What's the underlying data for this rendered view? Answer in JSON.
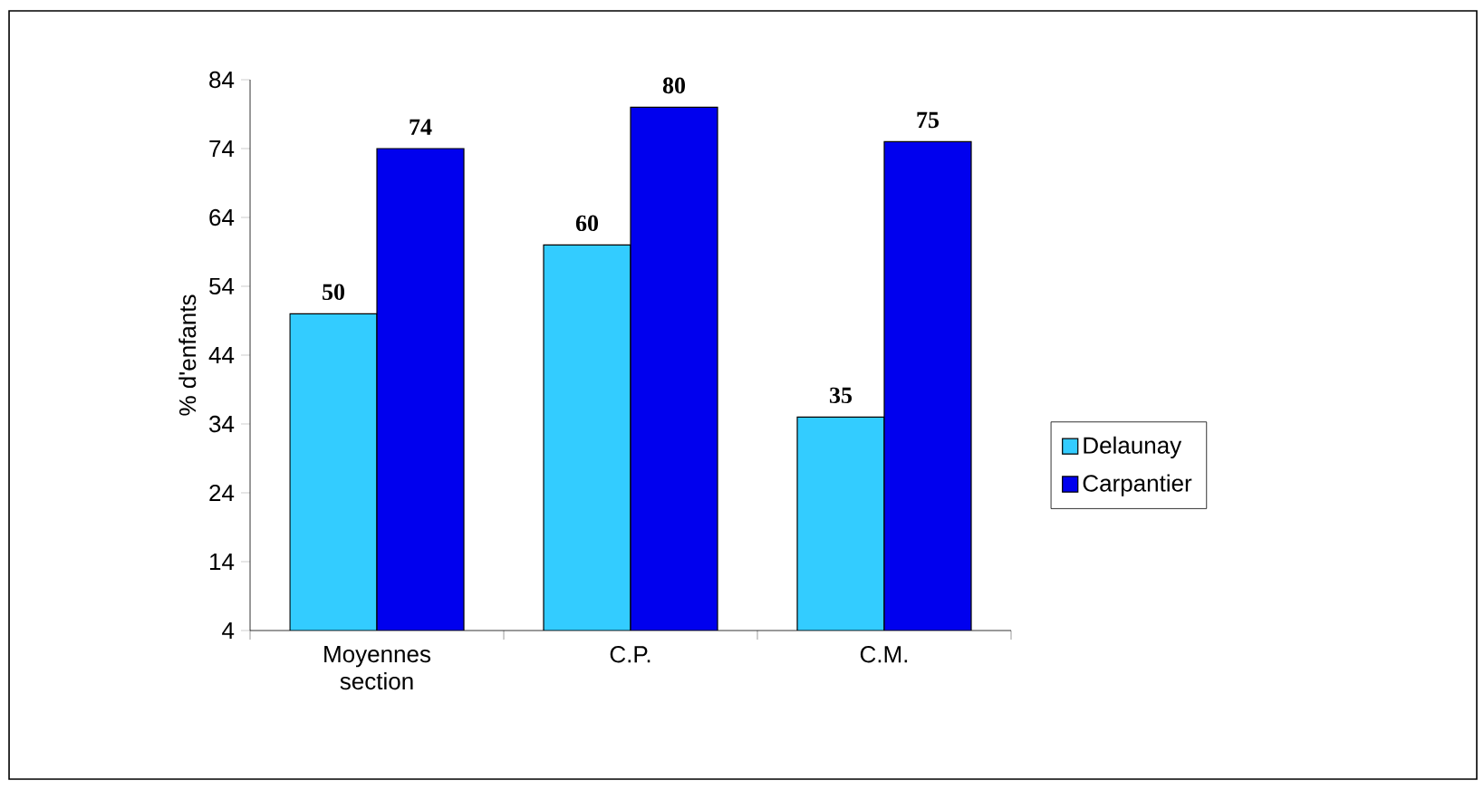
{
  "chart_data": {
    "type": "bar",
    "ylabel": "% d'enfants",
    "categories": [
      "Moyennes section",
      "C.P.",
      "C.M."
    ],
    "series": [
      {
        "name": "Delaunay",
        "color": "#33ccff",
        "values": [
          50,
          60,
          35
        ]
      },
      {
        "name": "Carpantier",
        "color": "#0000ee",
        "values": [
          74,
          80,
          75
        ]
      }
    ],
    "ylim": [
      4,
      84
    ],
    "yticks": [
      4,
      14,
      24,
      34,
      44,
      54,
      64,
      74,
      84
    ],
    "data_labels": true,
    "legend": "right",
    "grid": false
  }
}
